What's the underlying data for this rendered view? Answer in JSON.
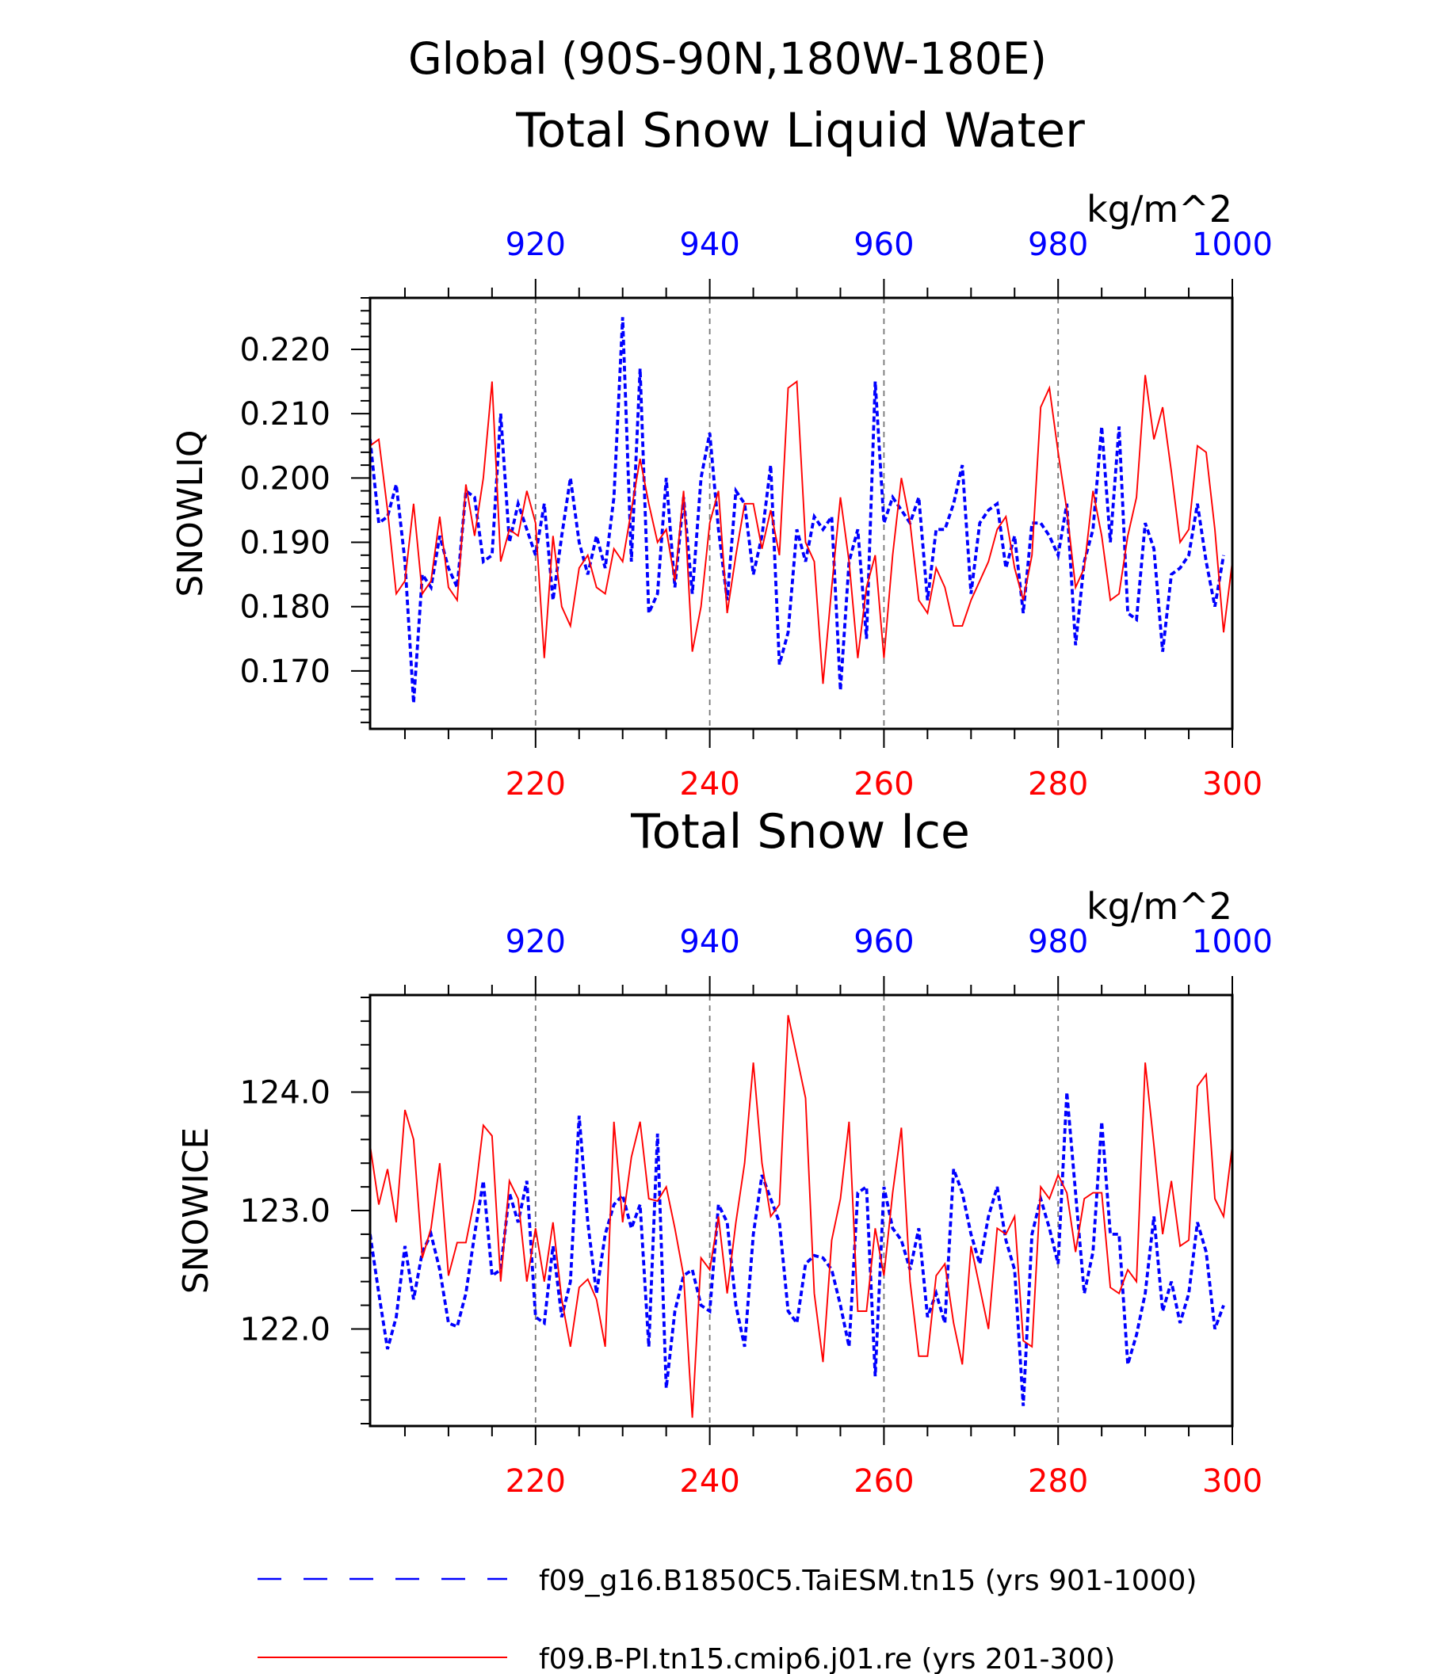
{
  "header": {
    "region": "Global (90S-90N,180W-180E)"
  },
  "colors": {
    "series_a": "#0000ff",
    "series_b": "#ff0000",
    "axis": "#000000",
    "grid": "#777777"
  },
  "legend": {
    "items": [
      {
        "label": "f09_g16.B1850C5.TaiESM.tn15 (yrs 901-1000)",
        "color": "#0000ff",
        "style": "dashed"
      },
      {
        "label": "f09.B-PI.tn15.cmip6.j01.re (yrs 201-300)",
        "color": "#ff0000",
        "style": "solid"
      }
    ]
  },
  "chart_data": [
    {
      "type": "line",
      "title": "Total Snow Liquid Water",
      "units": "kg/m^2",
      "ylabel": "SNOWLIQ",
      "ylim": [
        0.161,
        0.228
      ],
      "yticks": [
        0.17,
        0.18,
        0.19,
        0.2,
        0.21,
        0.22
      ],
      "ytick_labels": [
        "0.170",
        "0.180",
        "0.190",
        "0.200",
        "0.210",
        "0.220"
      ],
      "x_bottom": {
        "range": [
          201,
          300
        ],
        "ticks": [
          220,
          240,
          260,
          280,
          300
        ],
        "color": "#ff0000"
      },
      "x_top": {
        "range": [
          901,
          1000
        ],
        "ticks": [
          920,
          940,
          960,
          980,
          1000
        ],
        "color": "#0000ff"
      },
      "grid": "vertical dashed at major ticks",
      "series": [
        {
          "axis": "top",
          "color": "#0000ff",
          "style": "dashed",
          "x_start": 901,
          "values": [
            0.206,
            0.193,
            0.194,
            0.199,
            0.187,
            0.165,
            0.185,
            0.183,
            0.191,
            0.186,
            0.183,
            0.198,
            0.197,
            0.187,
            0.188,
            0.21,
            0.19,
            0.196,
            0.192,
            0.188,
            0.196,
            0.181,
            0.191,
            0.2,
            0.19,
            0.185,
            0.191,
            0.186,
            0.197,
            0.225,
            0.187,
            0.217,
            0.179,
            0.182,
            0.2,
            0.183,
            0.197,
            0.182,
            0.2,
            0.207,
            0.192,
            0.181,
            0.198,
            0.196,
            0.185,
            0.191,
            0.202,
            0.171,
            0.176,
            0.192,
            0.187,
            0.194,
            0.192,
            0.194,
            0.167,
            0.187,
            0.192,
            0.175,
            0.215,
            0.193,
            0.197,
            0.195,
            0.193,
            0.197,
            0.181,
            0.192,
            0.192,
            0.196,
            0.202,
            0.182,
            0.193,
            0.195,
            0.196,
            0.186,
            0.191,
            0.179,
            0.193,
            0.193,
            0.191,
            0.188,
            0.196,
            0.174,
            0.187,
            0.192,
            0.208,
            0.19,
            0.208,
            0.179,
            0.178,
            0.193,
            0.189,
            0.173,
            0.185,
            0.186,
            0.188,
            0.196,
            0.187,
            0.18,
            0.188
          ]
        },
        {
          "axis": "bottom",
          "color": "#ff0000",
          "style": "solid",
          "x_start": 201,
          "values": [
            0.205,
            0.206,
            0.195,
            0.182,
            0.184,
            0.196,
            0.182,
            0.184,
            0.194,
            0.183,
            0.181,
            0.199,
            0.191,
            0.2,
            0.215,
            0.187,
            0.192,
            0.191,
            0.198,
            0.193,
            0.172,
            0.191,
            0.18,
            0.177,
            0.186,
            0.188,
            0.183,
            0.182,
            0.189,
            0.187,
            0.195,
            0.203,
            0.196,
            0.19,
            0.192,
            0.184,
            0.198,
            0.173,
            0.18,
            0.193,
            0.198,
            0.179,
            0.188,
            0.196,
            0.196,
            0.189,
            0.195,
            0.188,
            0.214,
            0.215,
            0.19,
            0.187,
            0.168,
            0.183,
            0.197,
            0.187,
            0.172,
            0.183,
            0.188,
            0.172,
            0.188,
            0.2,
            0.193,
            0.181,
            0.179,
            0.186,
            0.183,
            0.177,
            0.177,
            0.181,
            0.184,
            0.187,
            0.192,
            0.194,
            0.186,
            0.181,
            0.188,
            0.211,
            0.214,
            0.204,
            0.195,
            0.183,
            0.186,
            0.198,
            0.191,
            0.181,
            0.182,
            0.191,
            0.197,
            0.216,
            0.206,
            0.211,
            0.201,
            0.19,
            0.192,
            0.205,
            0.204,
            0.192,
            0.176,
            0.187
          ]
        }
      ]
    },
    {
      "type": "line",
      "title": "Total Snow Ice",
      "units": "kg/m^2",
      "ylabel": "SNOWICE",
      "ylim": [
        121.18,
        124.82
      ],
      "yticks": [
        122.0,
        123.0,
        124.0
      ],
      "ytick_labels": [
        "122.0",
        "123.0",
        "124.0"
      ],
      "x_bottom": {
        "range": [
          201,
          300
        ],
        "ticks": [
          220,
          240,
          260,
          280,
          300
        ],
        "color": "#ff0000"
      },
      "x_top": {
        "range": [
          901,
          1000
        ],
        "ticks": [
          920,
          940,
          960,
          980,
          1000
        ],
        "color": "#0000ff"
      },
      "grid": "vertical dashed at major ticks",
      "series": [
        {
          "axis": "top",
          "color": "#0000ff",
          "style": "dashed",
          "x_start": 901,
          "values": [
            122.8,
            122.3,
            121.83,
            122.1,
            122.7,
            122.25,
            122.65,
            122.8,
            122.5,
            122.05,
            122.02,
            122.3,
            122.8,
            123.25,
            122.45,
            122.5,
            123.15,
            122.9,
            123.25,
            122.1,
            122.05,
            122.7,
            122.1,
            122.4,
            123.8,
            122.9,
            122.3,
            122.8,
            123.05,
            123.13,
            122.85,
            123.05,
            121.85,
            123.65,
            121.5,
            122.15,
            122.45,
            122.5,
            122.2,
            122.15,
            123.05,
            122.9,
            122.2,
            121.85,
            122.8,
            123.3,
            123.1,
            122.9,
            122.15,
            122.05,
            122.55,
            122.62,
            122.6,
            122.5,
            122.2,
            121.85,
            123.15,
            123.2,
            121.6,
            123.2,
            122.85,
            122.75,
            122.5,
            122.85,
            122.1,
            122.3,
            122.05,
            123.35,
            123.15,
            122.8,
            122.55,
            122.95,
            123.2,
            122.75,
            122.5,
            121.35,
            122.8,
            123.1,
            122.85,
            122.55,
            124.0,
            123.15,
            122.3,
            122.65,
            123.75,
            122.8,
            122.8,
            121.7,
            121.95,
            122.3,
            122.95,
            122.15,
            122.4,
            122.05,
            122.3,
            122.9,
            122.65,
            122.0,
            122.2
          ]
        },
        {
          "axis": "bottom",
          "color": "#ff0000",
          "style": "solid",
          "x_start": 201,
          "values": [
            123.55,
            123.05,
            123.35,
            122.9,
            123.85,
            123.6,
            122.6,
            122.85,
            123.4,
            122.45,
            122.73,
            122.73,
            123.1,
            123.72,
            123.63,
            122.4,
            123.25,
            123.1,
            122.4,
            122.85,
            122.4,
            122.9,
            122.25,
            121.85,
            122.35,
            122.42,
            122.25,
            121.85,
            123.75,
            122.9,
            123.45,
            123.75,
            123.1,
            123.08,
            123.2,
            122.85,
            122.45,
            121.25,
            122.6,
            122.5,
            122.95,
            122.3,
            122.9,
            123.4,
            124.25,
            123.4,
            122.95,
            123.05,
            124.65,
            124.3,
            123.95,
            122.3,
            121.72,
            122.75,
            123.1,
            123.75,
            122.15,
            122.15,
            122.85,
            122.45,
            123.15,
            123.7,
            122.4,
            121.77,
            121.77,
            122.45,
            122.55,
            122.05,
            121.7,
            122.7,
            122.35,
            122.0,
            122.85,
            122.8,
            122.95,
            121.9,
            121.85,
            123.2,
            123.1,
            123.3,
            123.15,
            122.65,
            123.1,
            123.15,
            123.15,
            122.35,
            122.3,
            122.5,
            122.4,
            124.25,
            123.55,
            122.8,
            123.25,
            122.7,
            122.75,
            124.05,
            124.15,
            123.1,
            122.95,
            123.55
          ]
        }
      ]
    }
  ]
}
